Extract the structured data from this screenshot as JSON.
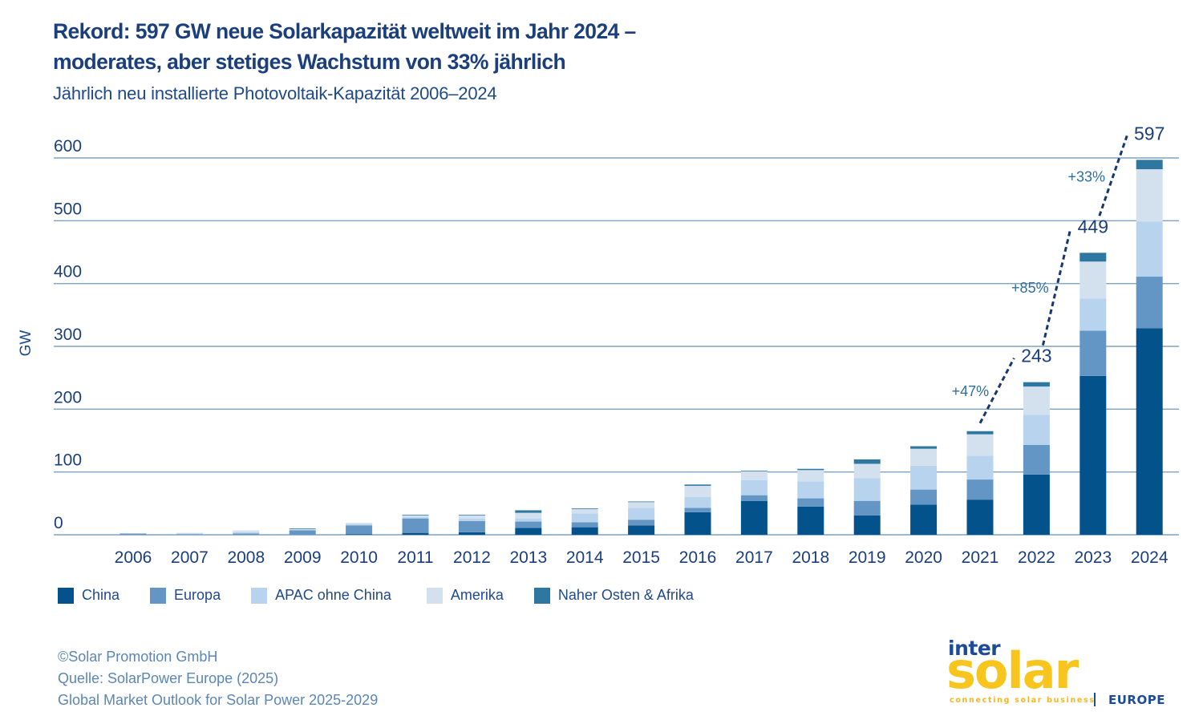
{
  "title_lines": [
    "Rekord: 597 GW neue Solarkapazität weltweit im Jahr 2024 –",
    "moderates, aber stetiges Wachstum von 33% jährlich"
  ],
  "subtitle": "Jährlich neu installierte Photovoltaik-Kapazität 2006–2024",
  "colors": {
    "text": "#1b3f7d",
    "grid": "#7fa3c2",
    "annotation": "#2d6f9e",
    "dashed_line": "#17386f"
  },
  "chart_data": {
    "type": "bar",
    "stacked": true,
    "title": "Jährlich neu installierte Photovoltaik-Kapazität 2006–2024",
    "xlabel": "",
    "ylabel": "GW",
    "ylim": [
      0,
      600
    ],
    "yticks": [
      0,
      100,
      200,
      300,
      400,
      500,
      600
    ],
    "grid": true,
    "legend_position": "bottom-left",
    "categories": [
      "2006",
      "2007",
      "2008",
      "2009",
      "2010",
      "2011",
      "2012",
      "2013",
      "2014",
      "2015",
      "2016",
      "2017",
      "2018",
      "2019",
      "2020",
      "2021",
      "2022",
      "2023",
      "2024"
    ],
    "series": [
      {
        "name": "China",
        "color": "#03528c",
        "values": [
          0,
          0,
          0,
          0,
          1,
          3,
          4,
          11,
          12,
          15,
          36,
          54,
          45,
          31,
          48,
          56,
          96,
          253,
          329
        ]
      },
      {
        "name": "Europa",
        "color": "#6396c4",
        "values": [
          2,
          1,
          2,
          7,
          14,
          23,
          18,
          10,
          8,
          9,
          7,
          9,
          13,
          23,
          24,
          32,
          47,
          72,
          82
        ]
      },
      {
        "name": "APAC ohne China",
        "color": "#b8d3ee",
        "values": [
          0,
          1,
          2,
          1,
          2,
          2,
          4,
          5,
          14,
          19,
          17,
          24,
          27,
          36,
          38,
          38,
          48,
          51,
          88
        ]
      },
      {
        "name": "Amerika",
        "color": "#d3e1ef",
        "values": [
          0,
          1,
          3,
          1,
          2,
          3,
          5,
          9,
          7,
          9,
          18,
          14,
          18,
          23,
          27,
          34,
          45,
          59,
          83
        ]
      },
      {
        "name": "Naher Osten & Afrika",
        "color": "#2e77a0",
        "values": [
          0,
          0,
          0,
          1,
          0,
          1,
          1,
          4,
          1,
          1,
          2,
          1,
          2,
          7,
          4,
          5,
          7,
          14,
          15
        ]
      }
    ],
    "totals_labeled": [
      {
        "year": "2022",
        "label": "243"
      },
      {
        "year": "2023",
        "label": "449"
      },
      {
        "year": "2024",
        "label": "597"
      }
    ],
    "growth_annotations": [
      {
        "from": "2021",
        "to": "2022",
        "label": "+47%"
      },
      {
        "from": "2022",
        "to": "2023",
        "label": "+85%"
      },
      {
        "from": "2023",
        "to": "2024",
        "label": "+33%"
      }
    ]
  },
  "footer_lines": [
    "©Solar Promotion GmbH",
    "Quelle: SolarPower Europe (2025)",
    "Global Market Outlook for Solar Power 2025-2029"
  ],
  "logo": {
    "inter": "inter",
    "solar": "solar",
    "tagline": "connecting solar business",
    "region": "EUROPE"
  }
}
